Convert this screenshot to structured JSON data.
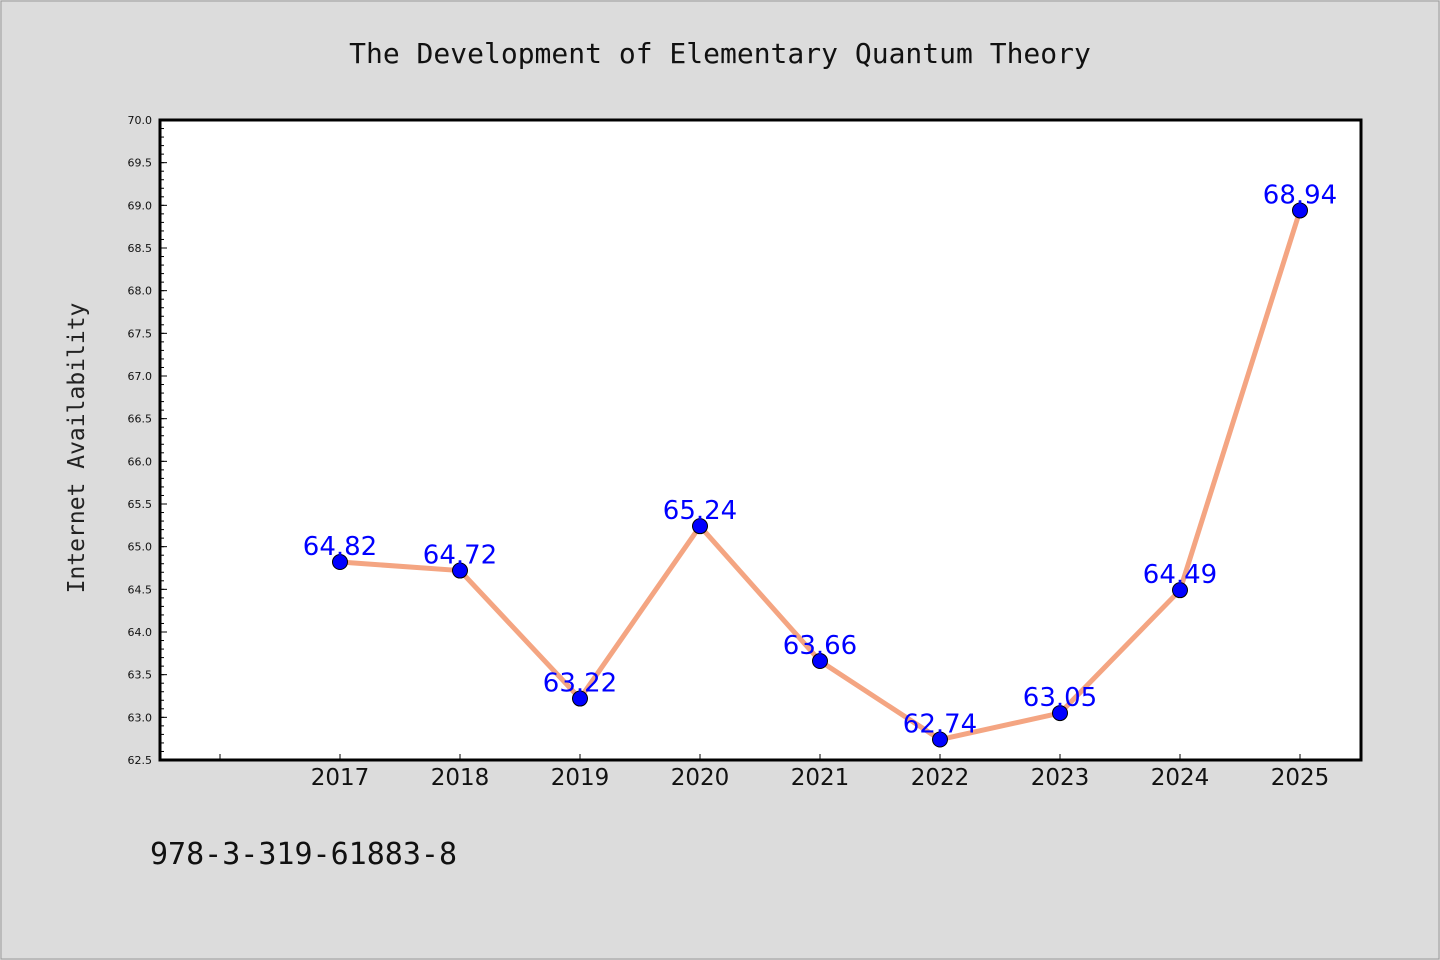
{
  "chart_data": {
    "type": "line",
    "title": "The Development of Elementary Quantum Theory",
    "xlabel": "",
    "ylabel": "Internet Availability",
    "categories": [
      "2017",
      "2018",
      "2019",
      "2020",
      "2021",
      "2022",
      "2023",
      "2024",
      "2025"
    ],
    "series": [
      {
        "values": [
          64.82,
          64.72,
          63.22,
          65.24,
          63.66,
          62.74,
          63.05,
          64.49,
          68.94
        ]
      }
    ],
    "data_labels": [
      "64.82",
      "64.72",
      "63.22",
      "65.24",
      "63.66",
      "62.74",
      "63.05",
      "64.49",
      "68.94"
    ],
    "ylim": [
      62.5,
      70.0
    ],
    "yticks": [
      "62.5",
      "63.0",
      "63.5",
      "64.0",
      "64.5",
      "65.0",
      "65.5",
      "66.0",
      "66.5",
      "67.0",
      "67.5",
      "68.0",
      "68.5",
      "69.0",
      "69.5",
      "70.0"
    ],
    "grid": false,
    "legend": "none",
    "colors": {
      "line": "#f4a582",
      "marker": "#0000ff",
      "label": "#0000ff",
      "background": "#dcdcdc",
      "plot_background": "#ffffff"
    }
  },
  "footer": {
    "isbn": "978-3-319-61883-8"
  }
}
